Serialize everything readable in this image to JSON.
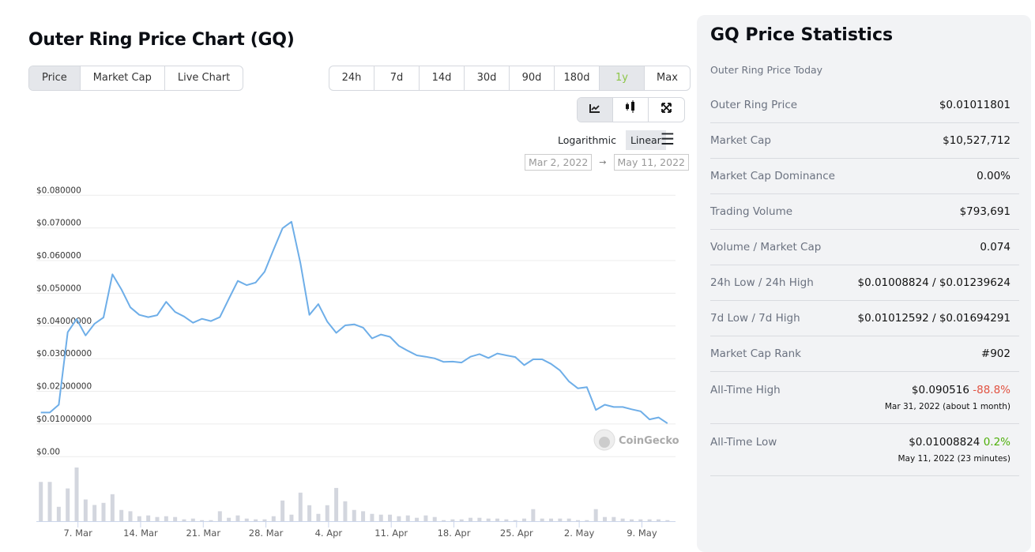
{
  "header": {
    "title": "Outer Ring Price Chart (GQ)"
  },
  "tabs": [
    {
      "label": "Price",
      "active": true
    },
    {
      "label": "Market Cap"
    },
    {
      "label": "Live Chart"
    }
  ],
  "ranges": [
    {
      "label": "24h"
    },
    {
      "label": "7d"
    },
    {
      "label": "14d"
    },
    {
      "label": "30d"
    },
    {
      "label": "90d"
    },
    {
      "label": "180d"
    },
    {
      "label": "1y",
      "active": true
    },
    {
      "label": "Max"
    }
  ],
  "chart_types": [
    {
      "icon": "line-chart-icon",
      "active": true
    },
    {
      "icon": "candlestick-icon"
    },
    {
      "icon": "fullscreen-icon"
    }
  ],
  "scale": {
    "log": "Logarithmic",
    "linear": "Linear",
    "selected": "Linear"
  },
  "date_range": {
    "from": "Mar 2, 2022",
    "arrow": "→",
    "to": "May 11, 2022"
  },
  "watermark": "CoinGecko",
  "colors": {
    "line": "#6eaee8",
    "volume": "#d3d6de",
    "accent_green": "#8dc647",
    "negative": "#e15241",
    "positive": "#4eaf0a"
  },
  "chart_data": {
    "type": "line",
    "x_start": "Mar 2, 2022",
    "x_end": "May 11, 2022",
    "x_interval": "1 day",
    "ylim": [
      0,
      0.08
    ],
    "y_ticks": [
      "$0.00",
      "$0.01000000",
      "$0.02000000",
      "$0.03000000",
      "$0.04000000",
      "$0.050000",
      "$0.060000",
      "$0.070000",
      "$0.080000"
    ],
    "x_ticks": [
      {
        "label": "7. Mar",
        "day": 5
      },
      {
        "label": "14. Mar",
        "day": 12
      },
      {
        "label": "21. Mar",
        "day": 19
      },
      {
        "label": "28. Mar",
        "day": 26
      },
      {
        "label": "4. Apr",
        "day": 33
      },
      {
        "label": "11. Apr",
        "day": 40
      },
      {
        "label": "18. Apr",
        "day": 47
      },
      {
        "label": "25. Apr",
        "day": 54
      },
      {
        "label": "2. May",
        "day": 61
      },
      {
        "label": "9. May",
        "day": 68
      }
    ],
    "grid": true,
    "price": [
      0.0135,
      0.0135,
      0.0159,
      0.0381,
      0.0421,
      0.0371,
      0.0407,
      0.0426,
      0.0558,
      0.0512,
      0.0457,
      0.0434,
      0.0427,
      0.0433,
      0.0474,
      0.0443,
      0.0429,
      0.041,
      0.0422,
      0.0415,
      0.0427,
      0.0483,
      0.0538,
      0.0525,
      0.0533,
      0.0566,
      0.0634,
      0.0699,
      0.0719,
      0.0592,
      0.0434,
      0.0467,
      0.0413,
      0.0379,
      0.0402,
      0.0405,
      0.0395,
      0.0362,
      0.0374,
      0.0367,
      0.0339,
      0.0324,
      0.031,
      0.0306,
      0.0301,
      0.029,
      0.0291,
      0.0288,
      0.0306,
      0.0314,
      0.0302,
      0.0316,
      0.031,
      0.0305,
      0.028,
      0.0298,
      0.0298,
      0.0284,
      0.0264,
      0.023,
      0.0209,
      0.0213,
      0.0143,
      0.0159,
      0.0152,
      0.0152,
      0.0145,
      0.0139,
      0.0114,
      0.012,
      0.0102
    ],
    "volume_relative": [
      150,
      150,
      55,
      125,
      205,
      83,
      62,
      70,
      103,
      43,
      38,
      19,
      22,
      16,
      19,
      16,
      7,
      10,
      4,
      4,
      38,
      13,
      22,
      10,
      7,
      7,
      19,
      79,
      25,
      109,
      61,
      28,
      61,
      127,
      76,
      43,
      38,
      28,
      25,
      25,
      19,
      22,
      13,
      22,
      16,
      4,
      7,
      7,
      13,
      13,
      10,
      10,
      7,
      4,
      10,
      46,
      10,
      10,
      10,
      10,
      4,
      4,
      46,
      16,
      16,
      10,
      7,
      7,
      7,
      7,
      4
    ]
  },
  "stats": {
    "title": "GQ Price Statistics",
    "subtitle": "Outer Ring Price Today",
    "rows": [
      {
        "label": "Outer Ring Price",
        "value": "$0.01011801"
      },
      {
        "label": "Market Cap",
        "value": "$10,527,712"
      },
      {
        "label": "Market Cap Dominance",
        "value": "0.00%"
      },
      {
        "label": "Trading Volume",
        "value": "$793,691"
      },
      {
        "label": "Volume / Market Cap",
        "value": "0.074"
      },
      {
        "label": "24h Low / 24h High",
        "value": "$0.01008824 / $0.01239624"
      },
      {
        "label": "7d Low / 7d High",
        "value": "$0.01012592 / $0.01694291"
      },
      {
        "label": "Market Cap Rank",
        "value": "#902"
      }
    ],
    "ath": {
      "label": "All-Time High",
      "value": "$0.090516",
      "change": "-88.8%",
      "date": "Mar 31, 2022 (about 1 month)"
    },
    "atl": {
      "label": "All-Time Low",
      "value": "$0.01008824",
      "change": "0.2%",
      "date": "May 11, 2022 (23 minutes)"
    }
  }
}
